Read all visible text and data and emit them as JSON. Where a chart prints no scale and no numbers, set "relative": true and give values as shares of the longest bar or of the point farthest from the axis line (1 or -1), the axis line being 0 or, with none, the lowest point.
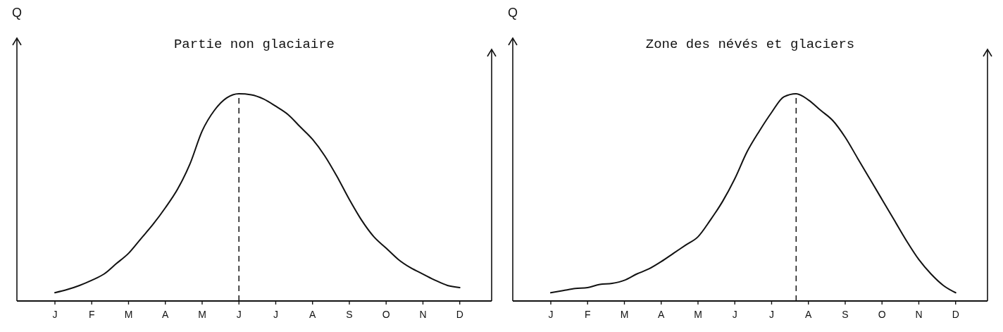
{
  "chart_data": [
    {
      "type": "line",
      "title": "Partie non glaciaire",
      "ylabel": "Q",
      "relative": true,
      "tick_labels": "x",
      "color": "#111111",
      "line_style": "solid",
      "marker": "none",
      "categories": [
        "J",
        null,
        null,
        "F",
        null,
        null,
        "M",
        null,
        null,
        "A",
        null,
        null,
        "M",
        null,
        null,
        "J",
        null,
        null,
        "J",
        null,
        null,
        "A",
        null,
        null,
        "S",
        null,
        null,
        "O",
        null,
        null,
        "N",
        null,
        null,
        "D"
      ],
      "values": [
        0.04,
        0.055,
        0.075,
        0.1,
        0.13,
        0.18,
        0.23,
        0.3,
        0.37,
        0.45,
        0.54,
        0.66,
        0.82,
        0.92,
        0.98,
        1.0,
        0.995,
        0.975,
        0.94,
        0.9,
        0.84,
        0.78,
        0.7,
        0.6,
        0.49,
        0.39,
        0.31,
        0.255,
        0.2,
        0.16,
        0.13,
        0.1,
        0.075,
        0.065
      ]
    },
    {
      "type": "line",
      "title": "Zone des névés et glaciers",
      "ylabel": "Q",
      "relative": true,
      "tick_labels": "x",
      "color": "#111111",
      "line_style": "solid",
      "marker": "none",
      "categories": [
        "J",
        null,
        null,
        "F",
        null,
        null,
        "M",
        null,
        null,
        "A",
        null,
        null,
        "M",
        null,
        null,
        "J",
        null,
        null,
        "J",
        null,
        null,
        "A",
        null,
        null,
        "S",
        null,
        null,
        "O",
        null,
        null,
        "N",
        null,
        null,
        "D"
      ],
      "values": [
        0.04,
        0.05,
        0.06,
        0.065,
        0.08,
        0.085,
        0.1,
        0.13,
        0.155,
        0.19,
        0.23,
        0.27,
        0.31,
        0.39,
        0.48,
        0.59,
        0.72,
        0.82,
        0.91,
        0.985,
        1.0,
        0.97,
        0.92,
        0.87,
        0.79,
        0.69,
        0.59,
        0.49,
        0.39,
        0.29,
        0.2,
        0.13,
        0.075,
        0.04
      ]
    }
  ]
}
